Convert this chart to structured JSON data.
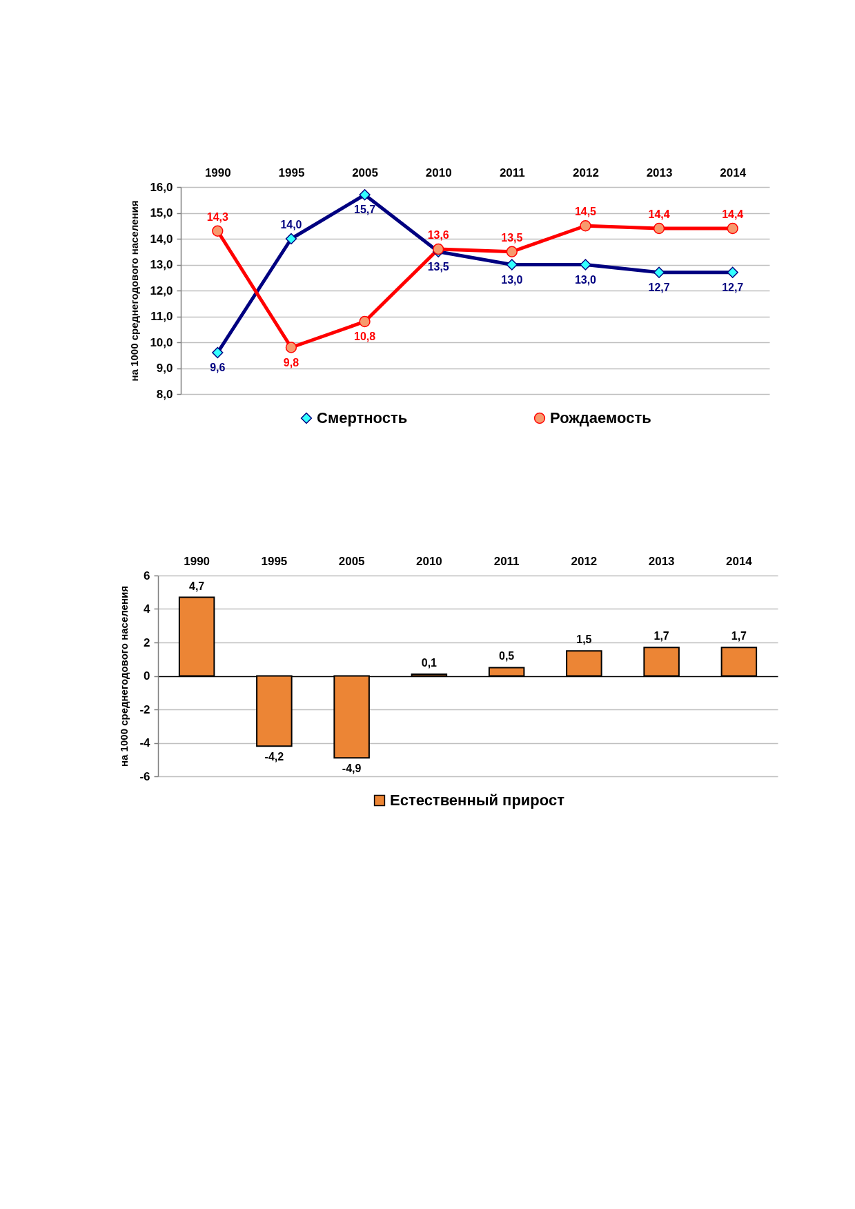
{
  "chart_data": [
    {
      "type": "line",
      "categories": [
        "1990",
        "1995",
        "2005",
        "2010",
        "2011",
        "2012",
        "2013",
        "2014"
      ],
      "ylabel": "на 1000 среднегодового населения",
      "ylim": [
        8,
        16
      ],
      "yticks": [
        {
          "value": 8,
          "label": "8,0"
        },
        {
          "value": 9,
          "label": "9,0"
        },
        {
          "value": 10,
          "label": "10,0"
        },
        {
          "value": 11,
          "label": "11,0"
        },
        {
          "value": 12,
          "label": "12,0"
        },
        {
          "value": 13,
          "label": "13,0"
        },
        {
          "value": 14,
          "label": "14,0"
        },
        {
          "value": 15,
          "label": "15,0"
        },
        {
          "value": 16,
          "label": "16,0"
        }
      ],
      "grid": "y",
      "legend": "bottom",
      "series": [
        {
          "name": "Смертность",
          "color": "#000080",
          "marker": "diamond",
          "values": [
            9.6,
            14.0,
            15.7,
            13.5,
            13.0,
            13.0,
            12.7,
            12.7
          ],
          "value_labels": [
            "9,6",
            "14,0",
            "15,7",
            "13,5",
            "13,0",
            "13,0",
            "12,7",
            "12,7"
          ]
        },
        {
          "name": "Рождаемость",
          "color": "#ff0000",
          "marker": "circle",
          "values": [
            14.3,
            9.8,
            10.8,
            13.6,
            13.5,
            14.5,
            14.4,
            14.4
          ],
          "value_labels": [
            "14,3",
            "9,8",
            "10,8",
            "13,6",
            "13,5",
            "14,5",
            "14,4",
            "14,4"
          ]
        }
      ]
    },
    {
      "type": "bar",
      "categories": [
        "1990",
        "1995",
        "2005",
        "2010",
        "2011",
        "2012",
        "2013",
        "2014"
      ],
      "ylabel": "на 1000 среднегодового населения",
      "ylim": [
        -6,
        6
      ],
      "yticks": [
        -6,
        -4,
        -2,
        0,
        2,
        4,
        6
      ],
      "grid": "y",
      "legend": "bottom",
      "series": [
        {
          "name": "Естественный прирост",
          "color": "#ec8535",
          "values": [
            4.7,
            -4.2,
            -4.9,
            0.1,
            0.5,
            1.5,
            1.7,
            1.7
          ],
          "value_labels": [
            "4,7",
            "-4,2",
            "-4,9",
            "0,1",
            "0,5",
            "1,5",
            "1,7",
            "1,7"
          ]
        }
      ]
    }
  ]
}
